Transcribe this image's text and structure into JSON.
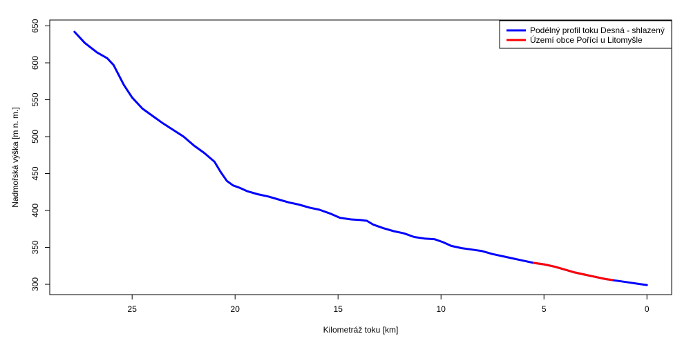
{
  "chart_data": {
    "type": "line",
    "title": "",
    "xlabel": "Kilometráž toku [km]",
    "ylabel": "Nadmořská výška [m n. m.]",
    "xlim": [
      29,
      -1.2
    ],
    "ylim": [
      286,
      658
    ],
    "x_ticks": [
      25,
      20,
      15,
      10,
      5,
      0
    ],
    "x_tick_labels": [
      "25",
      "20",
      "15",
      "10",
      "5",
      "0"
    ],
    "y_ticks": [
      300,
      350,
      400,
      450,
      500,
      550,
      600,
      650
    ],
    "y_tick_labels": [
      "300",
      "350",
      "400",
      "450",
      "500",
      "550",
      "600",
      "650"
    ],
    "grid": false,
    "legend_position": "top-right",
    "series": [
      {
        "name": "Podélný profil toku Desná - shlazený",
        "color": "#0000ff",
        "x": [
          27.8,
          27.3,
          26.7,
          26.2,
          25.9,
          25.4,
          25.0,
          24.5,
          24.0,
          23.5,
          23.0,
          22.5,
          22.0,
          21.5,
          21.0,
          20.7,
          20.4,
          20.1,
          19.8,
          19.4,
          18.9,
          18.4,
          17.9,
          17.4,
          16.9,
          16.4,
          15.9,
          15.4,
          14.9,
          14.4,
          13.9,
          13.6,
          13.3,
          12.8,
          12.3,
          11.8,
          11.3,
          10.8,
          10.3,
          9.9,
          9.5,
          9.0,
          8.5,
          8.0,
          7.5,
          7.0,
          6.5,
          6.0,
          5.5,
          5.0,
          4.5,
          4.0,
          3.5,
          3.0,
          2.5,
          2.0,
          1.5,
          1.0,
          0.5,
          0.0
        ],
        "y": [
          642,
          627,
          614,
          606,
          597,
          570,
          553,
          538,
          528,
          518,
          509,
          500,
          488,
          478,
          466,
          452,
          440,
          434,
          431,
          426,
          422,
          419,
          415,
          411,
          408,
          404,
          401,
          396,
          390,
          388,
          387,
          386,
          381,
          376,
          372,
          369,
          364,
          362,
          361,
          357,
          352,
          349,
          347,
          345,
          341,
          338,
          335,
          332,
          329,
          327,
          324,
          320,
          316,
          313,
          310,
          307,
          305,
          303,
          301,
          299
        ]
      },
      {
        "name": "Území obce Pořící u Litomyšle",
        "color": "#ff0000",
        "x": [
          5.5,
          5.0,
          4.5,
          4.0,
          3.5,
          3.0,
          2.5,
          2.0,
          1.7
        ],
        "y": [
          329,
          327,
          324,
          320,
          316,
          313,
          310,
          307,
          306
        ]
      }
    ]
  }
}
